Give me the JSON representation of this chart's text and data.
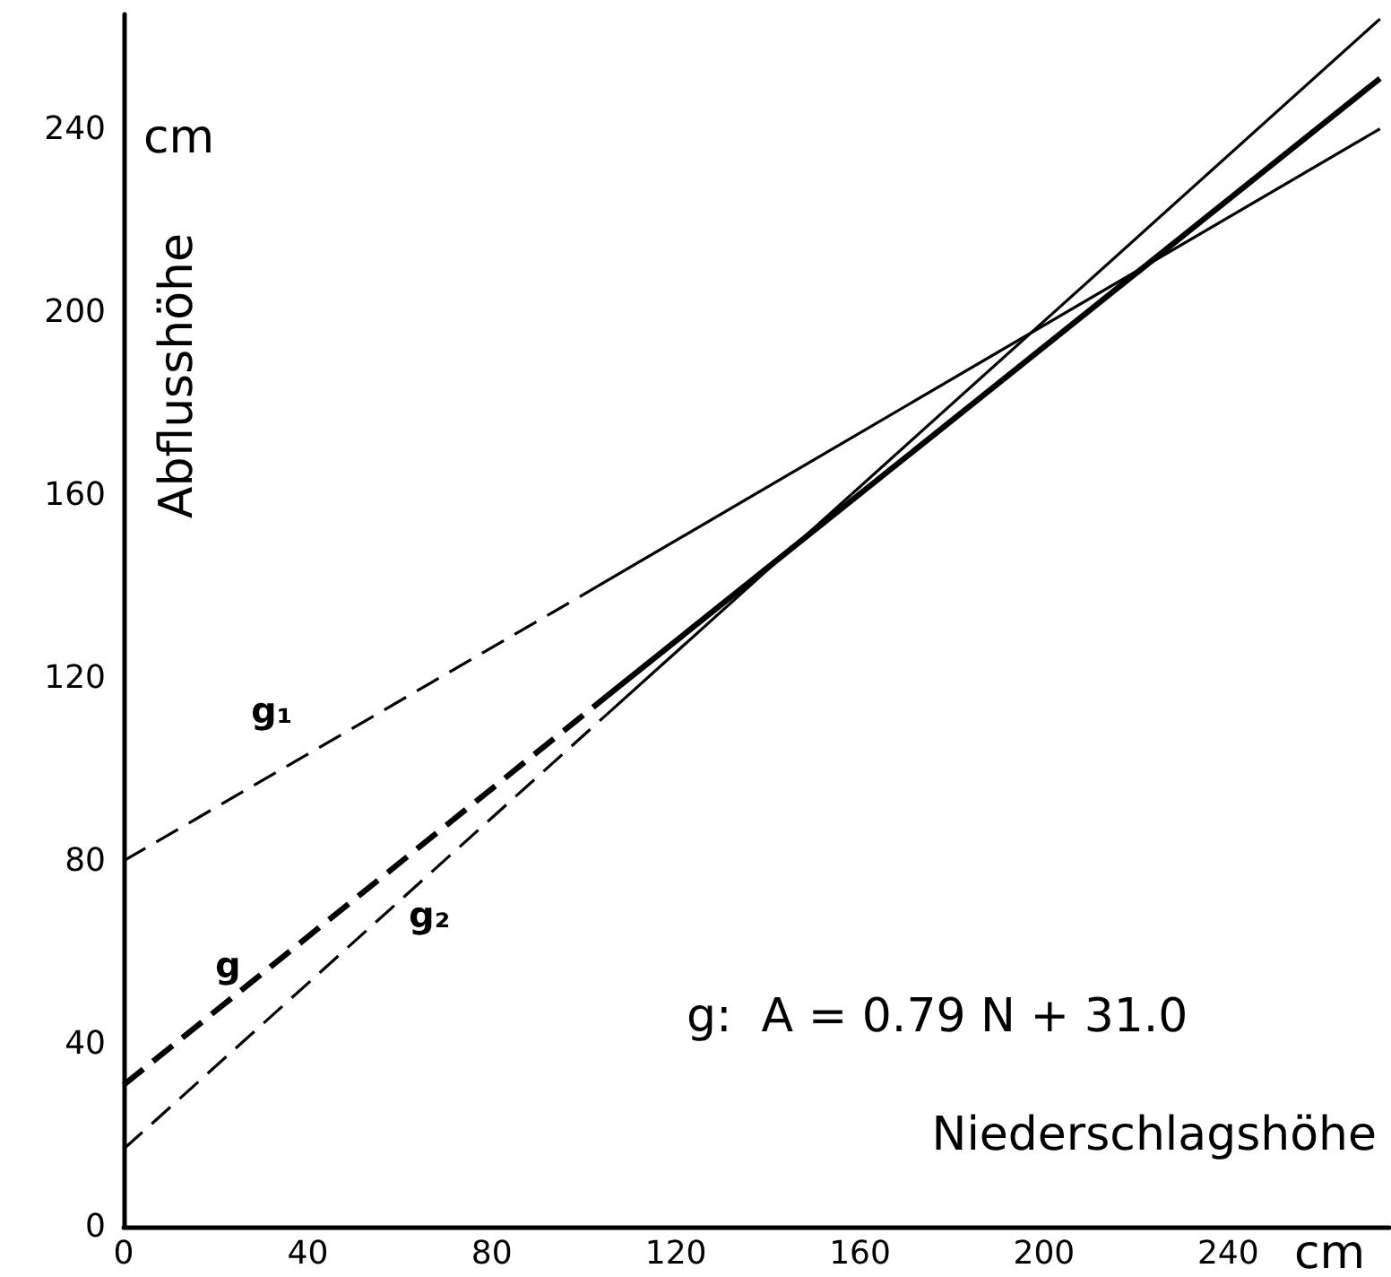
{
  "chart_data": {
    "type": "line",
    "xlabel": "Niederschlagshöhe",
    "ylabel": "Abflusshöhe",
    "xlim": [
      0,
      275
    ],
    "ylim": [
      0,
      265
    ],
    "xticks": [
      0,
      40,
      80,
      120,
      160,
      200,
      240
    ],
    "yticks": [
      0,
      40,
      80,
      120,
      160,
      200,
      240
    ],
    "grid": false,
    "marker": "none",
    "series": [
      {
        "color": "#000000",
        "line_style": "dashed",
        "x": [
          0,
          103
        ],
        "values": [
          80,
          140
        ]
      },
      {
        "color": "#000000",
        "line_style": "solid",
        "x": [
          103,
          273
        ],
        "values": [
          140,
          240
        ]
      },
      {
        "color": "#000000",
        "line_style": "dashed",
        "x": [
          0,
          105
        ],
        "values": [
          31,
          116
        ]
      },
      {
        "color": "#000000",
        "line_style": "solid",
        "x": [
          105,
          273
        ],
        "values": [
          116,
          251
        ]
      },
      {
        "color": "#000000",
        "line_style": "dashed",
        "x": [
          0,
          105
        ],
        "values": [
          17,
          112
        ]
      },
      {
        "color": "#000000",
        "line_style": "solid",
        "x": [
          105,
          273
        ],
        "values": [
          112,
          264
        ]
      }
    ],
    "annotations": [
      "cm",
      "cm",
      "g:  A = 0.79 N + 31.0",
      "g₁",
      "g",
      "g₂"
    ]
  }
}
